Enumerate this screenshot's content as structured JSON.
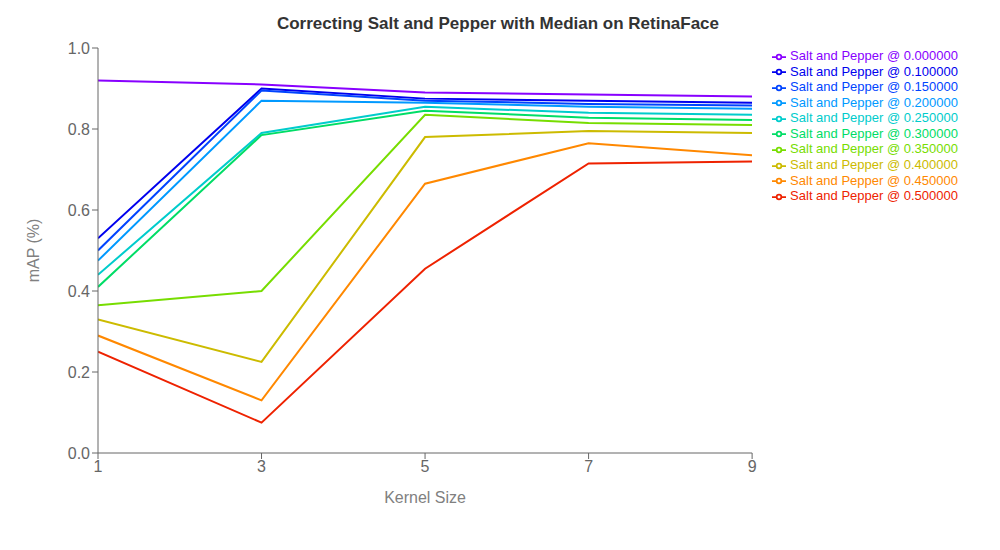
{
  "chart_data": {
    "type": "line",
    "title": "Correcting Salt and Pepper with Median on RetinaFace",
    "x_label": "Kernel Size",
    "y_label": "mAP (%)",
    "x": [
      1,
      3,
      5,
      7,
      9
    ],
    "series": [
      {
        "name": "Salt and Pepper @ 0.000000",
        "color": "#8800ff",
        "values": [
          0.92,
          0.91,
          0.89,
          0.885,
          0.88
        ]
      },
      {
        "name": "Salt and Pepper @ 0.100000",
        "color": "#0000ee",
        "values": [
          0.53,
          0.9,
          0.875,
          0.87,
          0.865
        ]
      },
      {
        "name": "Salt and Pepper @ 0.150000",
        "color": "#0044ff",
        "values": [
          0.5,
          0.895,
          0.87,
          0.862,
          0.858
        ]
      },
      {
        "name": "Salt and Pepper @ 0.200000",
        "color": "#0099ff",
        "values": [
          0.475,
          0.87,
          0.865,
          0.855,
          0.85
        ]
      },
      {
        "name": "Salt and Pepper @ 0.250000",
        "color": "#00cccc",
        "values": [
          0.44,
          0.79,
          0.855,
          0.84,
          0.835
        ]
      },
      {
        "name": "Salt and Pepper @ 0.300000",
        "color": "#00dd66",
        "values": [
          0.41,
          0.785,
          0.845,
          0.828,
          0.822
        ]
      },
      {
        "name": "Salt and Pepper @ 0.350000",
        "color": "#77dd00",
        "values": [
          0.365,
          0.4,
          0.835,
          0.815,
          0.81
        ]
      },
      {
        "name": "Salt and Pepper @ 0.400000",
        "color": "#ccbb00",
        "values": [
          0.33,
          0.225,
          0.78,
          0.795,
          0.79
        ]
      },
      {
        "name": "Salt and Pepper @ 0.450000",
        "color": "#ff8800",
        "values": [
          0.29,
          0.13,
          0.665,
          0.765,
          0.735
        ]
      },
      {
        "name": "Salt and Pepper @ 0.500000",
        "color": "#ee2200",
        "values": [
          0.25,
          0.075,
          0.455,
          0.715,
          0.72
        ]
      }
    ],
    "xlim": [
      1,
      9
    ],
    "xticks": [
      1,
      3,
      5,
      7,
      9
    ],
    "ylim": [
      0.0,
      1.0
    ],
    "yticks": [
      {
        "value": 0,
        "label": "0.0"
      },
      {
        "value": 0.2,
        "label": "0.2"
      },
      {
        "value": 0.4,
        "label": "0.4"
      },
      {
        "value": 0.6,
        "label": "0.6"
      },
      {
        "value": 0.8,
        "label": "0.8"
      },
      {
        "value": 1,
        "label": "1.0"
      }
    ],
    "grid": false,
    "legend": "right"
  }
}
